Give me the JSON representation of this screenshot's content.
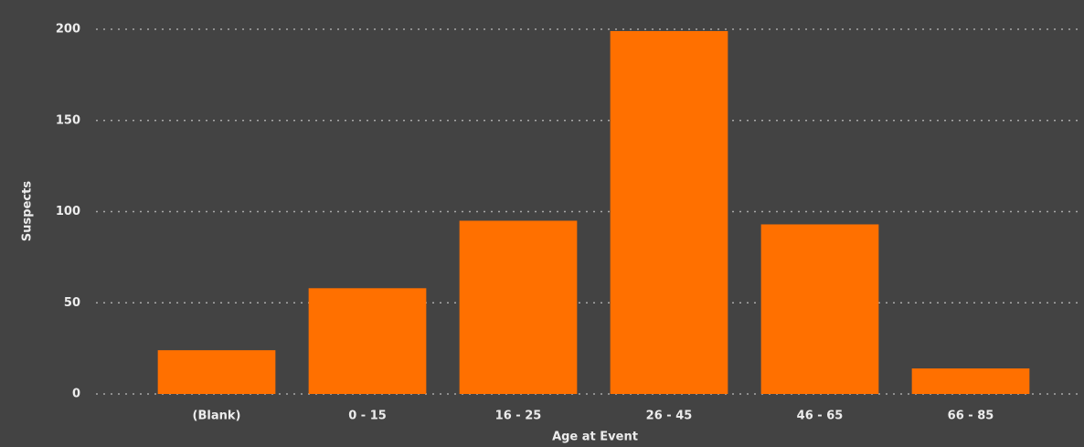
{
  "chart_data": {
    "type": "bar",
    "x_label": "Age at Event",
    "y_label": "Suspects",
    "categories": [
      "(Blank)",
      "0 - 15",
      "16 - 25",
      "26 - 45",
      "46 - 65",
      "66 - 85"
    ],
    "values": [
      24,
      58,
      95,
      199,
      93,
      14
    ],
    "color": "#ff7000",
    "ylim": [
      0,
      200
    ],
    "yticks": [
      0,
      50,
      100,
      150,
      200
    ],
    "grid": true
  }
}
